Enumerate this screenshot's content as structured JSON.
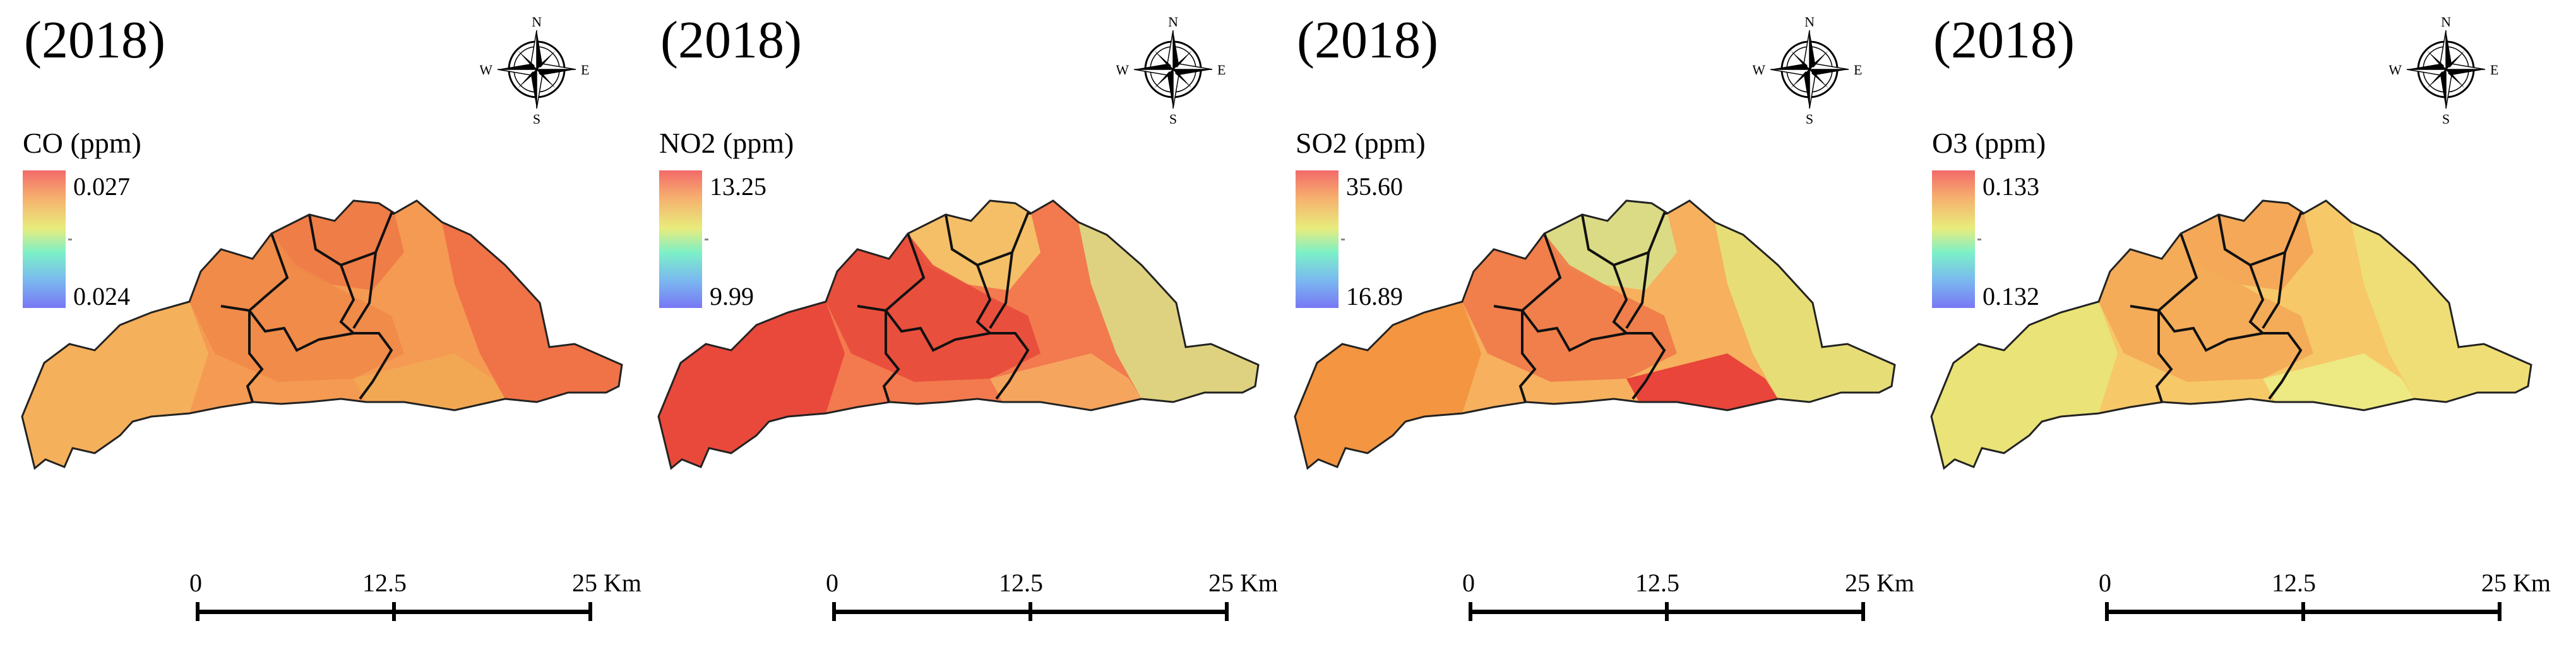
{
  "panels": [
    {
      "id": "co",
      "year": "(2018)",
      "legend": {
        "title": "CO (ppm)",
        "max": "0.027",
        "min": "0.024"
      },
      "fill": {
        "base": "#f59a52",
        "alt": "#f08a48",
        "north": "#ee7a46",
        "east": "#f06e46",
        "south": "#f2aa52",
        "west": "#f5b25c"
      }
    },
    {
      "id": "no2",
      "year": "(2018)",
      "legend": {
        "title": "NO2 (ppm)",
        "max": "13.25",
        "min": "9.99"
      },
      "fill": {
        "base": "#f27a4e",
        "alt": "#e84a3c",
        "north": "#f4c66a",
        "east": "#dcdc86",
        "south": "#f6aa60",
        "west": "#e8443a"
      }
    },
    {
      "id": "so2",
      "year": "(2018)",
      "legend": {
        "title": "SO2 (ppm)",
        "max": "35.60",
        "min": "16.89"
      },
      "fill": {
        "base": "#f6b05e",
        "alt": "#f07a4a",
        "north": "#d8e08a",
        "east": "#e6e27a",
        "south": "#e83a36",
        "west": "#f3923e"
      }
    },
    {
      "id": "o3",
      "year": "(2018)",
      "legend": {
        "title": "O3 (ppm)",
        "max": "0.133",
        "min": "0.132"
      },
      "fill": {
        "base": "#f6c868",
        "alt": "#f4a858",
        "north": "#f4a456",
        "east": "#eee078",
        "south": "#ecec86",
        "west": "#e8e57a"
      }
    }
  ],
  "north_arrow": {
    "n": "N",
    "s": "S",
    "e": "E",
    "w": "W"
  },
  "scale": {
    "l0": "0",
    "l1": "12.5",
    "l2": "25 Km"
  },
  "ramp_colors": [
    "#f26a6a",
    "#f6b06e",
    "#e8ec7c",
    "#7cf0c8",
    "#7ab8f0",
    "#7878f4"
  ]
}
